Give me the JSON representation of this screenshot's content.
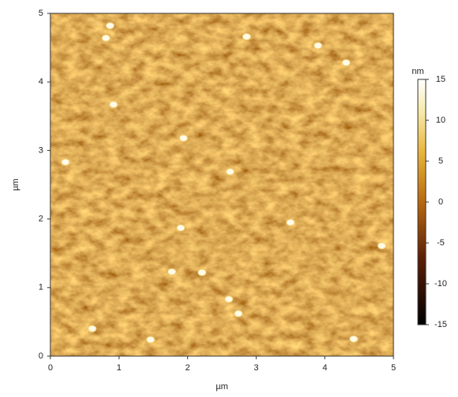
{
  "chart_data": {
    "type": "image",
    "xlabel": "µm",
    "ylabel": "µm",
    "xlim": [
      0,
      5
    ],
    "ylim": [
      0,
      5
    ],
    "xticks": [
      0,
      1,
      2,
      3,
      4,
      5
    ],
    "yticks": [
      0,
      1,
      2,
      3,
      4,
      5
    ],
    "colorbar": {
      "label": "nm",
      "lim": [
        -15,
        15
      ],
      "ticks": [
        -15,
        -10,
        -5,
        0,
        5,
        10,
        15
      ],
      "colormap": [
        {
          "value": -15,
          "color": "#000000"
        },
        {
          "value": -7,
          "color": "#5a1e06"
        },
        {
          "value": 0,
          "color": "#b8690f"
        },
        {
          "value": 6,
          "color": "#e8b43a"
        },
        {
          "value": 11,
          "color": "#f7e9a8"
        },
        {
          "value": 15,
          "color": "#ffffff"
        }
      ]
    },
    "particles": {
      "x": [
        0.81,
        0.87,
        2.86,
        3.9,
        4.31,
        0.92,
        1.94,
        2.62,
        0.22,
        1.9,
        3.5,
        4.83,
        2.21,
        1.77,
        2.6,
        2.74,
        0.61,
        1.46,
        4.42
      ],
      "y": [
        4.64,
        4.82,
        4.66,
        4.53,
        4.28,
        3.67,
        3.18,
        2.69,
        2.83,
        1.87,
        1.95,
        1.61,
        1.22,
        1.23,
        0.83,
        0.62,
        0.4,
        0.24,
        0.25
      ]
    }
  }
}
